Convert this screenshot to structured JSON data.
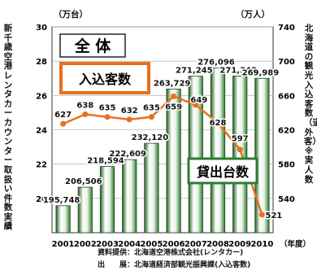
{
  "chart_data": {
    "type": "bar",
    "categories": [
      "2001",
      "2002",
      "2003",
      "2004",
      "2005",
      "2006",
      "2007",
      "2008",
      "2009",
      "2010"
    ],
    "x_unit": "（年度）",
    "left_unit": "（万台）",
    "right_unit": "（万人）",
    "left_axis_title": "新千歳空港レンタカーカウンター取扱い件数実績",
    "right_axis_title": "北海道の観光入込客数（道外客）※実人数",
    "ylim_left": [
      18,
      30
    ],
    "ylim_right": [
      500,
      740
    ],
    "yticks_left": [
      20,
      22,
      24,
      26,
      28,
      30
    ],
    "yticks_right": [
      540,
      580,
      620,
      660,
      700,
      740
    ],
    "series": [
      {
        "name": "貸出台数",
        "axis": "left",
        "values": [
          19.5748,
          20.6506,
          21.8594,
          22.2609,
          23.212,
          26.3729,
          27.1245,
          27.6096,
          27.1343,
          26.9989
        ],
        "labels": [
          "195,748",
          "206,506",
          "218,594",
          "222,609",
          "232,120",
          "263,729",
          "271,245",
          "276,096",
          "271,343",
          "269,989"
        ],
        "color": "#2e7d32"
      },
      {
        "name": "入込客数",
        "axis": "right",
        "values": [
          627,
          638,
          635,
          632,
          635,
          659,
          649,
          628,
          597,
          521
        ],
        "color": "#e8701a"
      }
    ],
    "title_box": "全 体",
    "legend_visitors": "入込客数",
    "legend_rentals": "貸出台数",
    "source_line1": "資料提供：北海道空港株式会社(レンタカー)",
    "source_line2": "出　　展：北海道経済部観光振興課(入込客数)",
    "grid": true
  }
}
